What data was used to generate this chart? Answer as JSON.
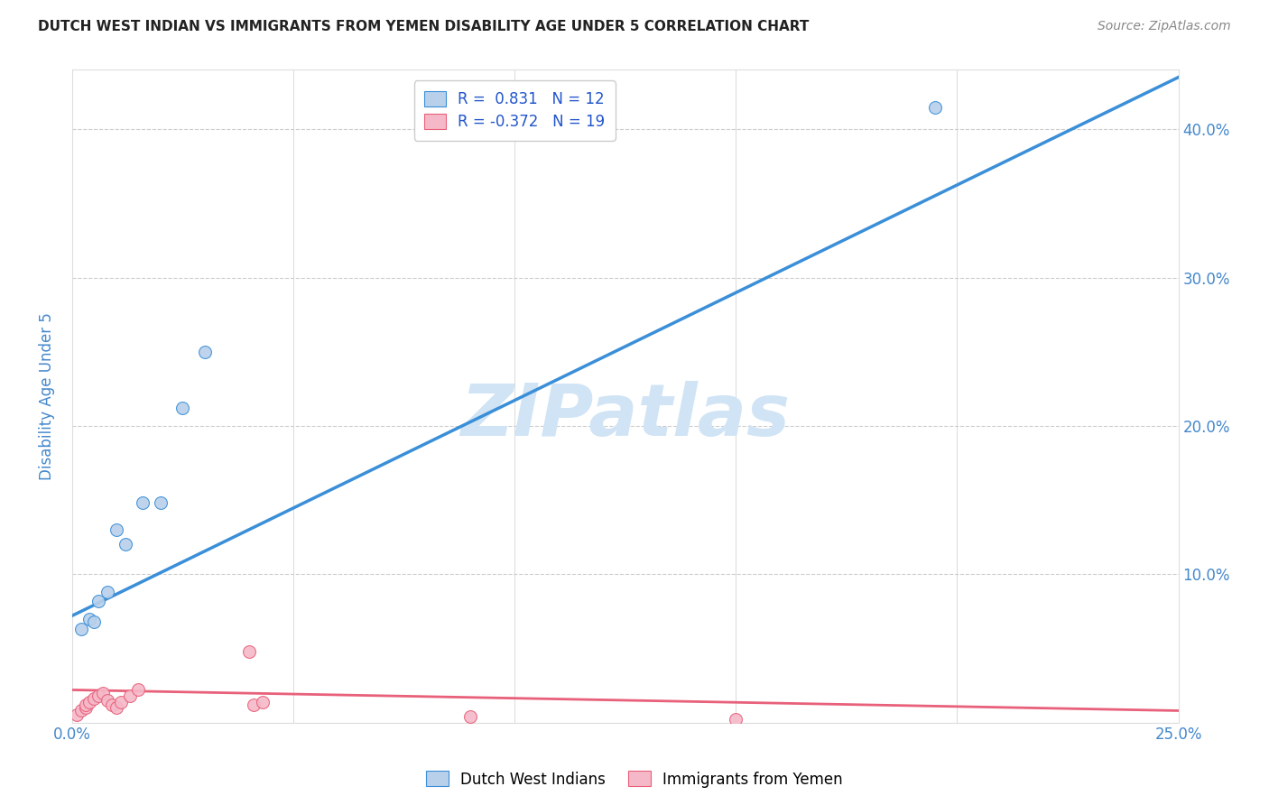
{
  "title": "DUTCH WEST INDIAN VS IMMIGRANTS FROM YEMEN DISABILITY AGE UNDER 5 CORRELATION CHART",
  "source": "Source: ZipAtlas.com",
  "ylabel": "Disability Age Under 5",
  "xlim": [
    0.0,
    0.25
  ],
  "ylim": [
    0.0,
    0.44
  ],
  "xticks": [
    0.0,
    0.05,
    0.1,
    0.15,
    0.2,
    0.25
  ],
  "yticks": [
    0.0,
    0.1,
    0.2,
    0.3,
    0.4
  ],
  "ytick_labels": [
    "",
    "10.0%",
    "20.0%",
    "30.0%",
    "40.0%"
  ],
  "xtick_labels": [
    "0.0%",
    "",
    "",
    "",
    "",
    "25.0%"
  ],
  "legend_R1": "0.831",
  "legend_N1": "12",
  "legend_R2": "-0.372",
  "legend_N2": "19",
  "legend_label1": "Dutch West Indians",
  "legend_label2": "Immigrants from Yemen",
  "blue_scatter_x": [
    0.002,
    0.004,
    0.005,
    0.006,
    0.008,
    0.01,
    0.012,
    0.016,
    0.02,
    0.025,
    0.03,
    0.195
  ],
  "blue_scatter_y": [
    0.063,
    0.07,
    0.068,
    0.082,
    0.088,
    0.13,
    0.12,
    0.148,
    0.148,
    0.212,
    0.25,
    0.415
  ],
  "pink_scatter_x": [
    0.001,
    0.002,
    0.003,
    0.003,
    0.004,
    0.005,
    0.006,
    0.007,
    0.008,
    0.009,
    0.01,
    0.011,
    0.013,
    0.015,
    0.04,
    0.041,
    0.043,
    0.09,
    0.15
  ],
  "pink_scatter_y": [
    0.005,
    0.008,
    0.01,
    0.012,
    0.014,
    0.016,
    0.018,
    0.02,
    0.015,
    0.012,
    0.01,
    0.014,
    0.018,
    0.022,
    0.048,
    0.012,
    0.014,
    0.004,
    0.002
  ],
  "blue_line_x": [
    0.0,
    0.25
  ],
  "blue_line_y": [
    0.072,
    0.435
  ],
  "pink_line_x": [
    0.0,
    0.25
  ],
  "pink_line_y": [
    0.022,
    0.008
  ],
  "blue_color": "#b8d0ea",
  "blue_line_color": "#3a8fd8",
  "pink_color": "#f5b8c8",
  "pink_line_color": "#e8607a",
  "scatter_size": 100,
  "background_color": "#ffffff",
  "grid_color": "#cccccc",
  "title_color": "#222222",
  "tick_color": "#4488cc",
  "watermark": "ZIPatlas",
  "watermark_color": "#d0e4f5",
  "watermark_fontsize": 58
}
